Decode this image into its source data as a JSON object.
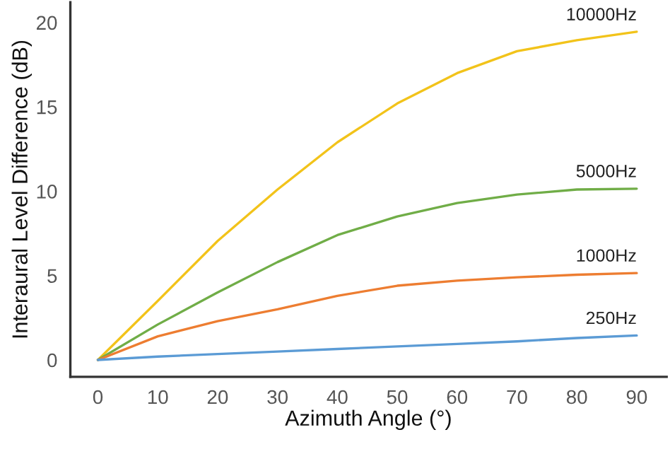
{
  "chart_data": {
    "type": "line",
    "xlabel": "Azimuth Angle (°)",
    "ylabel": "Interaural Level Difference (dB)",
    "x": [
      0,
      10,
      20,
      30,
      40,
      50,
      60,
      70,
      80,
      90
    ],
    "series": [
      {
        "name": "10000Hz",
        "color": "#f2c31a",
        "values": [
          0,
          3.5,
          7.05,
          10.1,
          12.9,
          15.2,
          17.0,
          18.3,
          18.95,
          19.45
        ]
      },
      {
        "name": "5000Hz",
        "color": "#70ad47",
        "values": [
          0,
          2.1,
          4.0,
          5.8,
          7.4,
          8.5,
          9.3,
          9.8,
          10.1,
          10.15
        ]
      },
      {
        "name": "1000Hz",
        "color": "#ed7d31",
        "values": [
          0,
          1.4,
          2.3,
          3.0,
          3.8,
          4.4,
          4.7,
          4.9,
          5.05,
          5.15
        ]
      },
      {
        "name": "250Hz",
        "color": "#5b9bd5",
        "values": [
          0,
          0.2,
          0.35,
          0.5,
          0.65,
          0.8,
          0.95,
          1.1,
          1.3,
          1.45
        ]
      }
    ],
    "xlim": [
      -4.6,
      95
    ],
    "ylim": [
      -1,
      21.2
    ],
    "xticks": [
      0,
      10,
      20,
      30,
      40,
      50,
      60,
      70,
      80,
      90
    ],
    "yticks": [
      0,
      5,
      10,
      15,
      20
    ],
    "grid": false,
    "legend": false,
    "marker": "none",
    "line_style": "solid"
  }
}
